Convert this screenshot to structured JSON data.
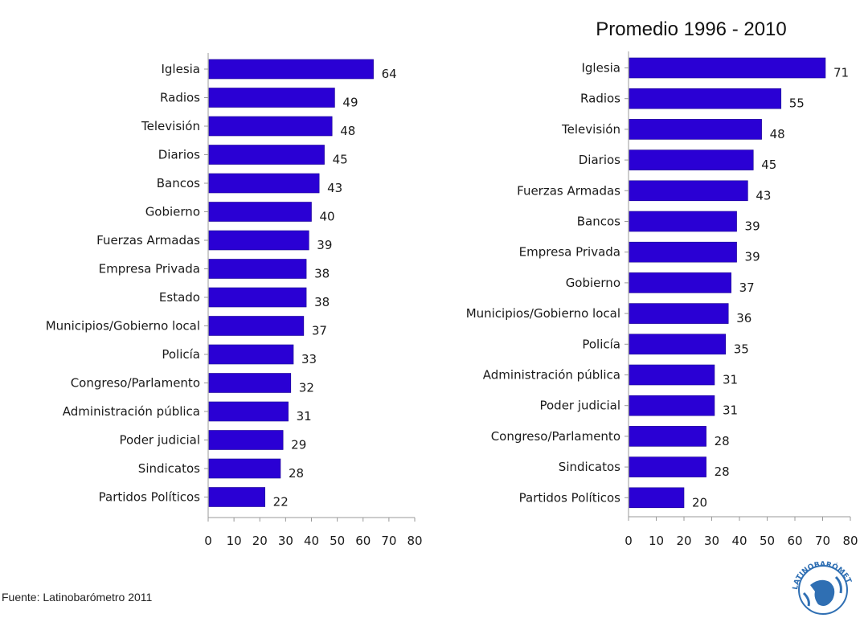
{
  "chart_data": [
    {
      "type": "bar",
      "orientation": "horizontal",
      "title": "",
      "categories": [
        "Iglesia",
        "Radios",
        "Televisión",
        "Diarios",
        "Bancos",
        "Gobierno",
        "Fuerzas Armadas",
        "Empresa Privada",
        "Estado",
        "Municipios/Gobierno local",
        "Policía",
        "Congreso/Parlamento",
        "Administración pública",
        "Poder judicial",
        "Sindicatos",
        "Partidos Políticos"
      ],
      "values": [
        64,
        49,
        48,
        45,
        43,
        40,
        39,
        38,
        38,
        37,
        33,
        32,
        31,
        29,
        28,
        22
      ],
      "xlim": [
        0,
        80
      ],
      "xticks": [
        "0",
        "10",
        "20",
        "30",
        "40",
        "50",
        "60",
        "70",
        "80"
      ],
      "bar_color": "#2a00d4",
      "data_labels": true,
      "grid": false
    },
    {
      "type": "bar",
      "orientation": "horizontal",
      "title": "Promedio 1996 - 2010",
      "categories": [
        "Iglesia",
        "Radios",
        "Televisión",
        "Diarios",
        "Fuerzas Armadas",
        "Bancos",
        "Empresa Privada",
        "Gobierno",
        "Municipios/Gobierno local",
        "Policía",
        "Administración pública",
        "Poder judicial",
        "Congreso/Parlamento",
        "Sindicatos",
        "Partidos Políticos"
      ],
      "values": [
        71,
        55,
        48,
        45,
        43,
        39,
        39,
        37,
        36,
        35,
        31,
        31,
        28,
        28,
        20
      ],
      "xlim": [
        0,
        80
      ],
      "xticks": [
        "0",
        "10",
        "20",
        "30",
        "40",
        "50",
        "60",
        "70",
        "80"
      ],
      "bar_color": "#2a00d4",
      "data_labels": true,
      "grid": false
    }
  ],
  "source_note": "Fuente: Latinobarómetro 2011",
  "logo": {
    "icon": "latinobarometro-globe-logo",
    "text": "LATINOBARÓMETRO"
  }
}
